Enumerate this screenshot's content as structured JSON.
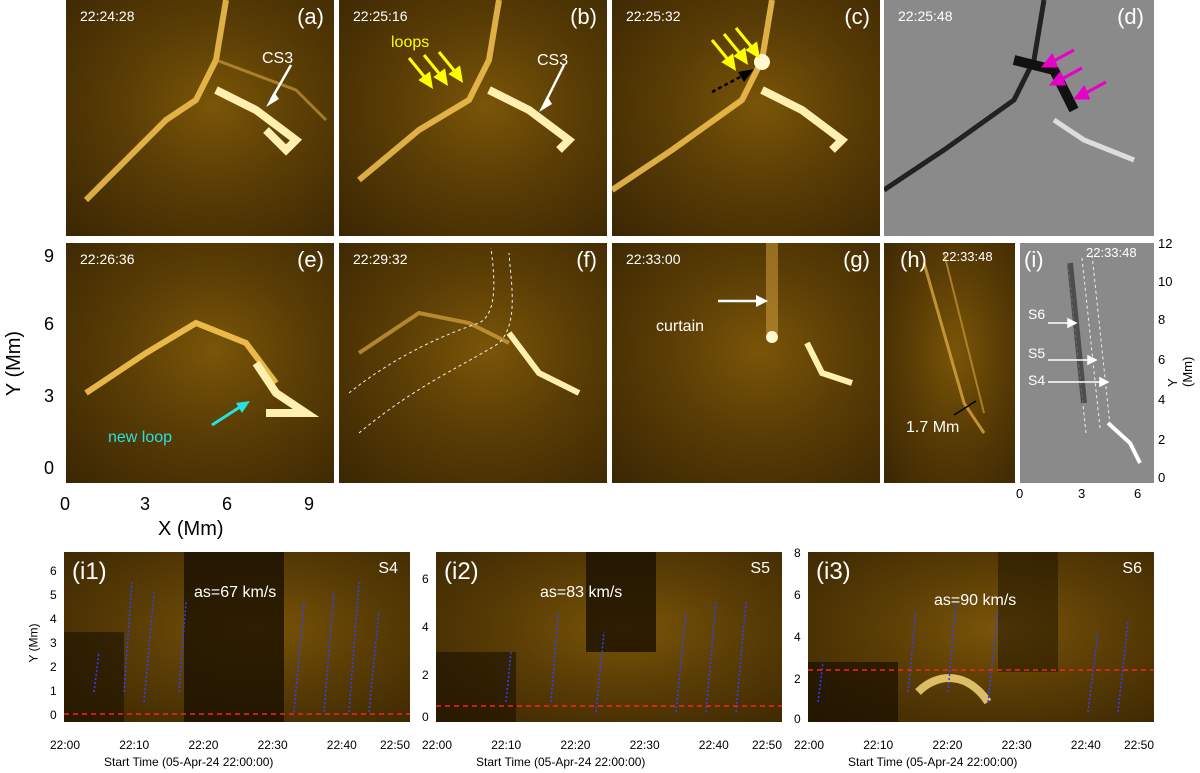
{
  "panels": {
    "a": {
      "label": "(a)",
      "time": "22:24:28",
      "annotation": "CS3"
    },
    "b": {
      "label": "(b)",
      "time": "22:25:16",
      "annotation": "CS3",
      "loops": "loops"
    },
    "c": {
      "label": "(c)",
      "time": "22:25:32"
    },
    "d": {
      "label": "(d)",
      "time": "22:25:48"
    },
    "e": {
      "label": "(e)",
      "time": "22:26:36",
      "annotation": "new loop"
    },
    "f": {
      "label": "(f)",
      "time": "22:29:32"
    },
    "g": {
      "label": "(g)",
      "time": "22:33:00",
      "annotation": "curtain"
    },
    "h": {
      "label": "(h)",
      "time": "22:33:48",
      "annotation": "1.7 Mm"
    },
    "i": {
      "label": "(i)",
      "time": "22:33:48",
      "slits": [
        "S6",
        "S5",
        "S4"
      ]
    }
  },
  "axes_main": {
    "ylabel": "Y (Mm)",
    "xlabel": "X (Mm)",
    "yticks": [
      "9",
      "6",
      "3",
      "0"
    ],
    "xticks": [
      "0",
      "3",
      "6",
      "9"
    ]
  },
  "axes_i": {
    "ylabel": "Y (Mm)",
    "yticks": [
      "12",
      "10",
      "8",
      "6",
      "4",
      "2",
      "0"
    ],
    "xticks": [
      "0",
      "3",
      "6"
    ]
  },
  "time_distance": [
    {
      "label": "(i1)",
      "slit": "S4",
      "speed": "as=67 km/s",
      "yticks": [
        "6",
        "5",
        "4",
        "3",
        "2",
        "1",
        "0"
      ],
      "ylabel": "Y (Mm)"
    },
    {
      "label": "(i2)",
      "slit": "S5",
      "speed": "as=83 km/s",
      "yticks": [
        "6",
        "4",
        "2",
        "0"
      ]
    },
    {
      "label": "(i3)",
      "slit": "S6",
      "speed": "as=90 km/s",
      "yticks": [
        "8",
        "6",
        "4",
        "2",
        "0"
      ]
    }
  ],
  "time_axis": {
    "ticks": [
      "22:00",
      "22:10",
      "22:20",
      "22:30",
      "22:40",
      "22:50"
    ],
    "start_label": "Start Time (05-Apr-24 22:00:00)"
  },
  "colors": {
    "arrow_white": "#ffffff",
    "arrow_yellow": "#ffff00",
    "arrow_magenta": "#e600c8",
    "arrow_cyan": "#28e0e0",
    "red_dashed": "#ff2020",
    "blue_dotted": "#3040ff"
  }
}
